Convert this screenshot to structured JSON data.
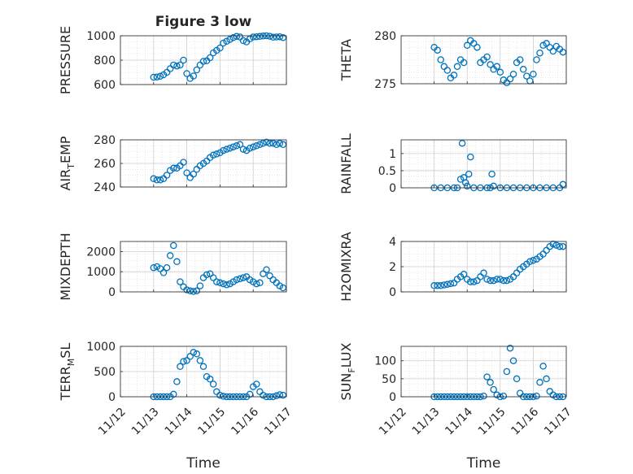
{
  "figure_title": "Figure 3 low",
  "marker_color": "#0072bd",
  "x_tick_labels": [
    "11/12",
    "11/13",
    "11/14",
    "11/15",
    "11/16",
    "11/17"
  ],
  "x_label": "Time",
  "chart_data": [
    {
      "type": "scatter",
      "id": "pressure",
      "title": "Figure 3 low",
      "ylabel": "PRESSURE",
      "ylim": [
        600,
        1000
      ],
      "yticks": [
        600,
        800,
        1000
      ],
      "xlim": [
        0,
        5
      ],
      "xlabel": "",
      "x": [
        1.0,
        1.1,
        1.2,
        1.3,
        1.4,
        1.5,
        1.6,
        1.7,
        1.8,
        1.9,
        2.0,
        2.1,
        2.2,
        2.3,
        2.4,
        2.5,
        2.6,
        2.7,
        2.8,
        2.9,
        3.0,
        3.1,
        3.2,
        3.3,
        3.4,
        3.5,
        3.6,
        3.7,
        3.8,
        3.9,
        4.0,
        4.1,
        4.2,
        4.3,
        4.4,
        4.5,
        4.6,
        4.7,
        4.8,
        4.9
      ],
      "y": [
        660,
        662,
        668,
        680,
        700,
        730,
        760,
        752,
        760,
        800,
        690,
        650,
        670,
        720,
        760,
        790,
        795,
        820,
        860,
        880,
        900,
        940,
        955,
        970,
        985,
        995,
        990,
        960,
        950,
        975,
        990,
        992,
        995,
        998,
        1000,
        996,
        988,
        990,
        992,
        985
      ]
    },
    {
      "type": "scatter",
      "id": "theta",
      "title": "",
      "ylabel": "THETA",
      "ylim": [
        275,
        280
      ],
      "yticks": [
        275,
        280
      ],
      "xlim": [
        0,
        5
      ],
      "xlabel": "",
      "x": [
        1.0,
        1.1,
        1.2,
        1.3,
        1.4,
        1.5,
        1.6,
        1.7,
        1.8,
        1.9,
        2.0,
        2.1,
        2.2,
        2.3,
        2.4,
        2.5,
        2.6,
        2.7,
        2.8,
        2.9,
        3.0,
        3.1,
        3.2,
        3.3,
        3.4,
        3.5,
        3.6,
        3.7,
        3.8,
        3.9,
        4.0,
        4.1,
        4.2,
        4.3,
        4.4,
        4.5,
        4.6,
        4.7,
        4.8,
        4.9
      ],
      "y": [
        278.8,
        278.5,
        277.5,
        276.8,
        276.4,
        275.6,
        275.9,
        276.8,
        277.5,
        277.2,
        279.0,
        279.5,
        279.2,
        278.8,
        277.2,
        277.5,
        277.8,
        277.0,
        276.5,
        276.8,
        276.2,
        275.4,
        275.1,
        275.5,
        276.0,
        277.2,
        277.5,
        276.5,
        275.8,
        275.3,
        276.0,
        277.5,
        278.2,
        279.0,
        279.2,
        278.8,
        278.4,
        278.9,
        278.6,
        278.3
      ]
    },
    {
      "type": "scatter",
      "id": "air_temp",
      "title": "",
      "ylabel": "AIR_TEMP",
      "ylabel_main": "AIR",
      "ylabel_sub": "T",
      "ylabel_rest": "EMP",
      "ylim": [
        240,
        280
      ],
      "yticks": [
        240,
        260,
        280
      ],
      "xlim": [
        0,
        5
      ],
      "xlabel": "",
      "x": [
        1.0,
        1.1,
        1.2,
        1.3,
        1.4,
        1.5,
        1.6,
        1.7,
        1.8,
        1.9,
        2.0,
        2.1,
        2.2,
        2.3,
        2.4,
        2.5,
        2.6,
        2.7,
        2.8,
        2.9,
        3.0,
        3.1,
        3.2,
        3.3,
        3.4,
        3.5,
        3.6,
        3.7,
        3.8,
        3.9,
        4.0,
        4.1,
        4.2,
        4.3,
        4.4,
        4.5,
        4.6,
        4.7,
        4.8,
        4.9
      ],
      "y": [
        247,
        246,
        246,
        247,
        250,
        254,
        256,
        256,
        258,
        261,
        252,
        248,
        251,
        255,
        258,
        260,
        262,
        265,
        267,
        268,
        269,
        271,
        272,
        273,
        274,
        275,
        276,
        272,
        271,
        273,
        274,
        275,
        276,
        277,
        278,
        277,
        277,
        276,
        277,
        276
      ]
    },
    {
      "type": "scatter",
      "id": "rainfall",
      "title": "",
      "ylabel": "RAINFALL",
      "ylim": [
        0,
        1.4
      ],
      "yticks": [
        0,
        0.5,
        1
      ],
      "xlim": [
        0,
        5
      ],
      "xlabel": "",
      "x": [
        1.0,
        1.2,
        1.4,
        1.6,
        1.7,
        1.8,
        1.85,
        1.9,
        1.95,
        2.0,
        2.05,
        2.1,
        2.2,
        2.4,
        2.6,
        2.7,
        2.75,
        2.8,
        3.0,
        3.2,
        3.4,
        3.6,
        3.8,
        4.0,
        4.2,
        4.4,
        4.6,
        4.8,
        4.9
      ],
      "y": [
        0,
        0,
        0,
        0,
        0,
        0.25,
        1.3,
        0.3,
        0.15,
        0.05,
        0.4,
        0.9,
        0,
        0,
        0,
        0,
        0.4,
        0.05,
        0,
        0,
        0,
        0,
        0,
        0,
        0,
        0,
        0,
        0,
        0.1
      ]
    },
    {
      "type": "scatter",
      "id": "mixdepth",
      "title": "",
      "ylabel": "MIXDEPTH",
      "ylim": [
        0,
        2500
      ],
      "yticks": [
        0,
        1000,
        2000
      ],
      "xlim": [
        0,
        5
      ],
      "xlabel": "",
      "x": [
        1.0,
        1.1,
        1.2,
        1.3,
        1.4,
        1.5,
        1.6,
        1.7,
        1.8,
        1.9,
        2.0,
        2.1,
        2.2,
        2.3,
        2.4,
        2.5,
        2.6,
        2.7,
        2.8,
        2.9,
        3.0,
        3.1,
        3.2,
        3.3,
        3.4,
        3.5,
        3.6,
        3.7,
        3.8,
        3.9,
        4.0,
        4.1,
        4.2,
        4.3,
        4.4,
        4.5,
        4.6,
        4.7,
        4.8,
        4.9
      ],
      "y": [
        1200,
        1250,
        1150,
        950,
        1200,
        1800,
        2300,
        1500,
        500,
        250,
        100,
        50,
        20,
        50,
        300,
        700,
        850,
        900,
        700,
        500,
        450,
        400,
        350,
        400,
        500,
        600,
        650,
        700,
        750,
        600,
        500,
        400,
        450,
        900,
        1100,
        800,
        600,
        450,
        300,
        200
      ]
    },
    {
      "type": "scatter",
      "id": "h2omixra",
      "title": "",
      "ylabel": "H2OMIXRA",
      "ylim": [
        0,
        4
      ],
      "yticks": [
        0,
        2,
        4
      ],
      "xlim": [
        0,
        5
      ],
      "xlabel": "",
      "x": [
        1.0,
        1.1,
        1.2,
        1.3,
        1.4,
        1.5,
        1.6,
        1.7,
        1.8,
        1.9,
        2.0,
        2.1,
        2.2,
        2.3,
        2.4,
        2.5,
        2.6,
        2.7,
        2.8,
        2.9,
        3.0,
        3.1,
        3.2,
        3.3,
        3.4,
        3.5,
        3.6,
        3.7,
        3.8,
        3.9,
        4.0,
        4.1,
        4.2,
        4.3,
        4.4,
        4.5,
        4.6,
        4.7,
        4.8,
        4.9
      ],
      "y": [
        0.5,
        0.5,
        0.5,
        0.55,
        0.6,
        0.65,
        0.7,
        1.0,
        1.2,
        1.4,
        1.0,
        0.8,
        0.8,
        0.9,
        1.2,
        1.5,
        1.0,
        0.9,
        0.9,
        1.0,
        1.0,
        0.9,
        0.9,
        1.0,
        1.2,
        1.5,
        1.8,
        2.0,
        2.2,
        2.4,
        2.5,
        2.6,
        2.8,
        3.0,
        3.3,
        3.6,
        3.8,
        3.7,
        3.6,
        3.6
      ]
    },
    {
      "type": "scatter",
      "id": "terr_msl",
      "title": "",
      "ylabel": "TERR_MSL",
      "ylabel_main": "TERR",
      "ylabel_sub": "M",
      "ylabel_rest": "SL",
      "ylim": [
        0,
        1000
      ],
      "yticks": [
        0,
        500,
        1000
      ],
      "xlim": [
        0,
        5
      ],
      "xlabel": "Time",
      "x": [
        1.0,
        1.1,
        1.2,
        1.3,
        1.4,
        1.5,
        1.6,
        1.7,
        1.8,
        1.9,
        2.0,
        2.1,
        2.2,
        2.3,
        2.4,
        2.5,
        2.6,
        2.7,
        2.8,
        2.9,
        3.0,
        3.1,
        3.2,
        3.3,
        3.4,
        3.5,
        3.6,
        3.7,
        3.8,
        3.9,
        4.0,
        4.1,
        4.2,
        4.3,
        4.4,
        4.5,
        4.6,
        4.7,
        4.8,
        4.9
      ],
      "y": [
        0,
        0,
        0,
        0,
        0,
        0,
        50,
        300,
        600,
        700,
        720,
        800,
        880,
        850,
        720,
        600,
        400,
        350,
        250,
        100,
        30,
        10,
        0,
        0,
        0,
        0,
        0,
        0,
        0,
        50,
        200,
        250,
        100,
        30,
        0,
        0,
        0,
        20,
        40,
        30
      ]
    },
    {
      "type": "scatter",
      "id": "sun_flux",
      "title": "",
      "ylabel": "SUN_FLUX",
      "ylabel_main": "SUN",
      "ylabel_sub": "F",
      "ylabel_rest": "LUX",
      "ylim": [
        0,
        140
      ],
      "yticks": [
        0,
        50,
        100
      ],
      "xlim": [
        0,
        5
      ],
      "xlabel": "Time",
      "x": [
        1.0,
        1.1,
        1.2,
        1.3,
        1.4,
        1.5,
        1.6,
        1.7,
        1.8,
        1.9,
        2.0,
        2.1,
        2.2,
        2.3,
        2.4,
        2.5,
        2.6,
        2.7,
        2.8,
        2.9,
        3.0,
        3.1,
        3.2,
        3.3,
        3.4,
        3.5,
        3.6,
        3.7,
        3.8,
        3.9,
        4.0,
        4.1,
        4.2,
        4.3,
        4.4,
        4.5,
        4.6,
        4.7,
        4.8,
        4.9
      ],
      "y": [
        0,
        0,
        0,
        0,
        0,
        0,
        0,
        0,
        0,
        0,
        0,
        0,
        0,
        0,
        0,
        2,
        55,
        40,
        20,
        5,
        0,
        2,
        70,
        135,
        100,
        50,
        10,
        0,
        0,
        0,
        0,
        2,
        40,
        85,
        50,
        15,
        5,
        0,
        0,
        0
      ]
    }
  ]
}
